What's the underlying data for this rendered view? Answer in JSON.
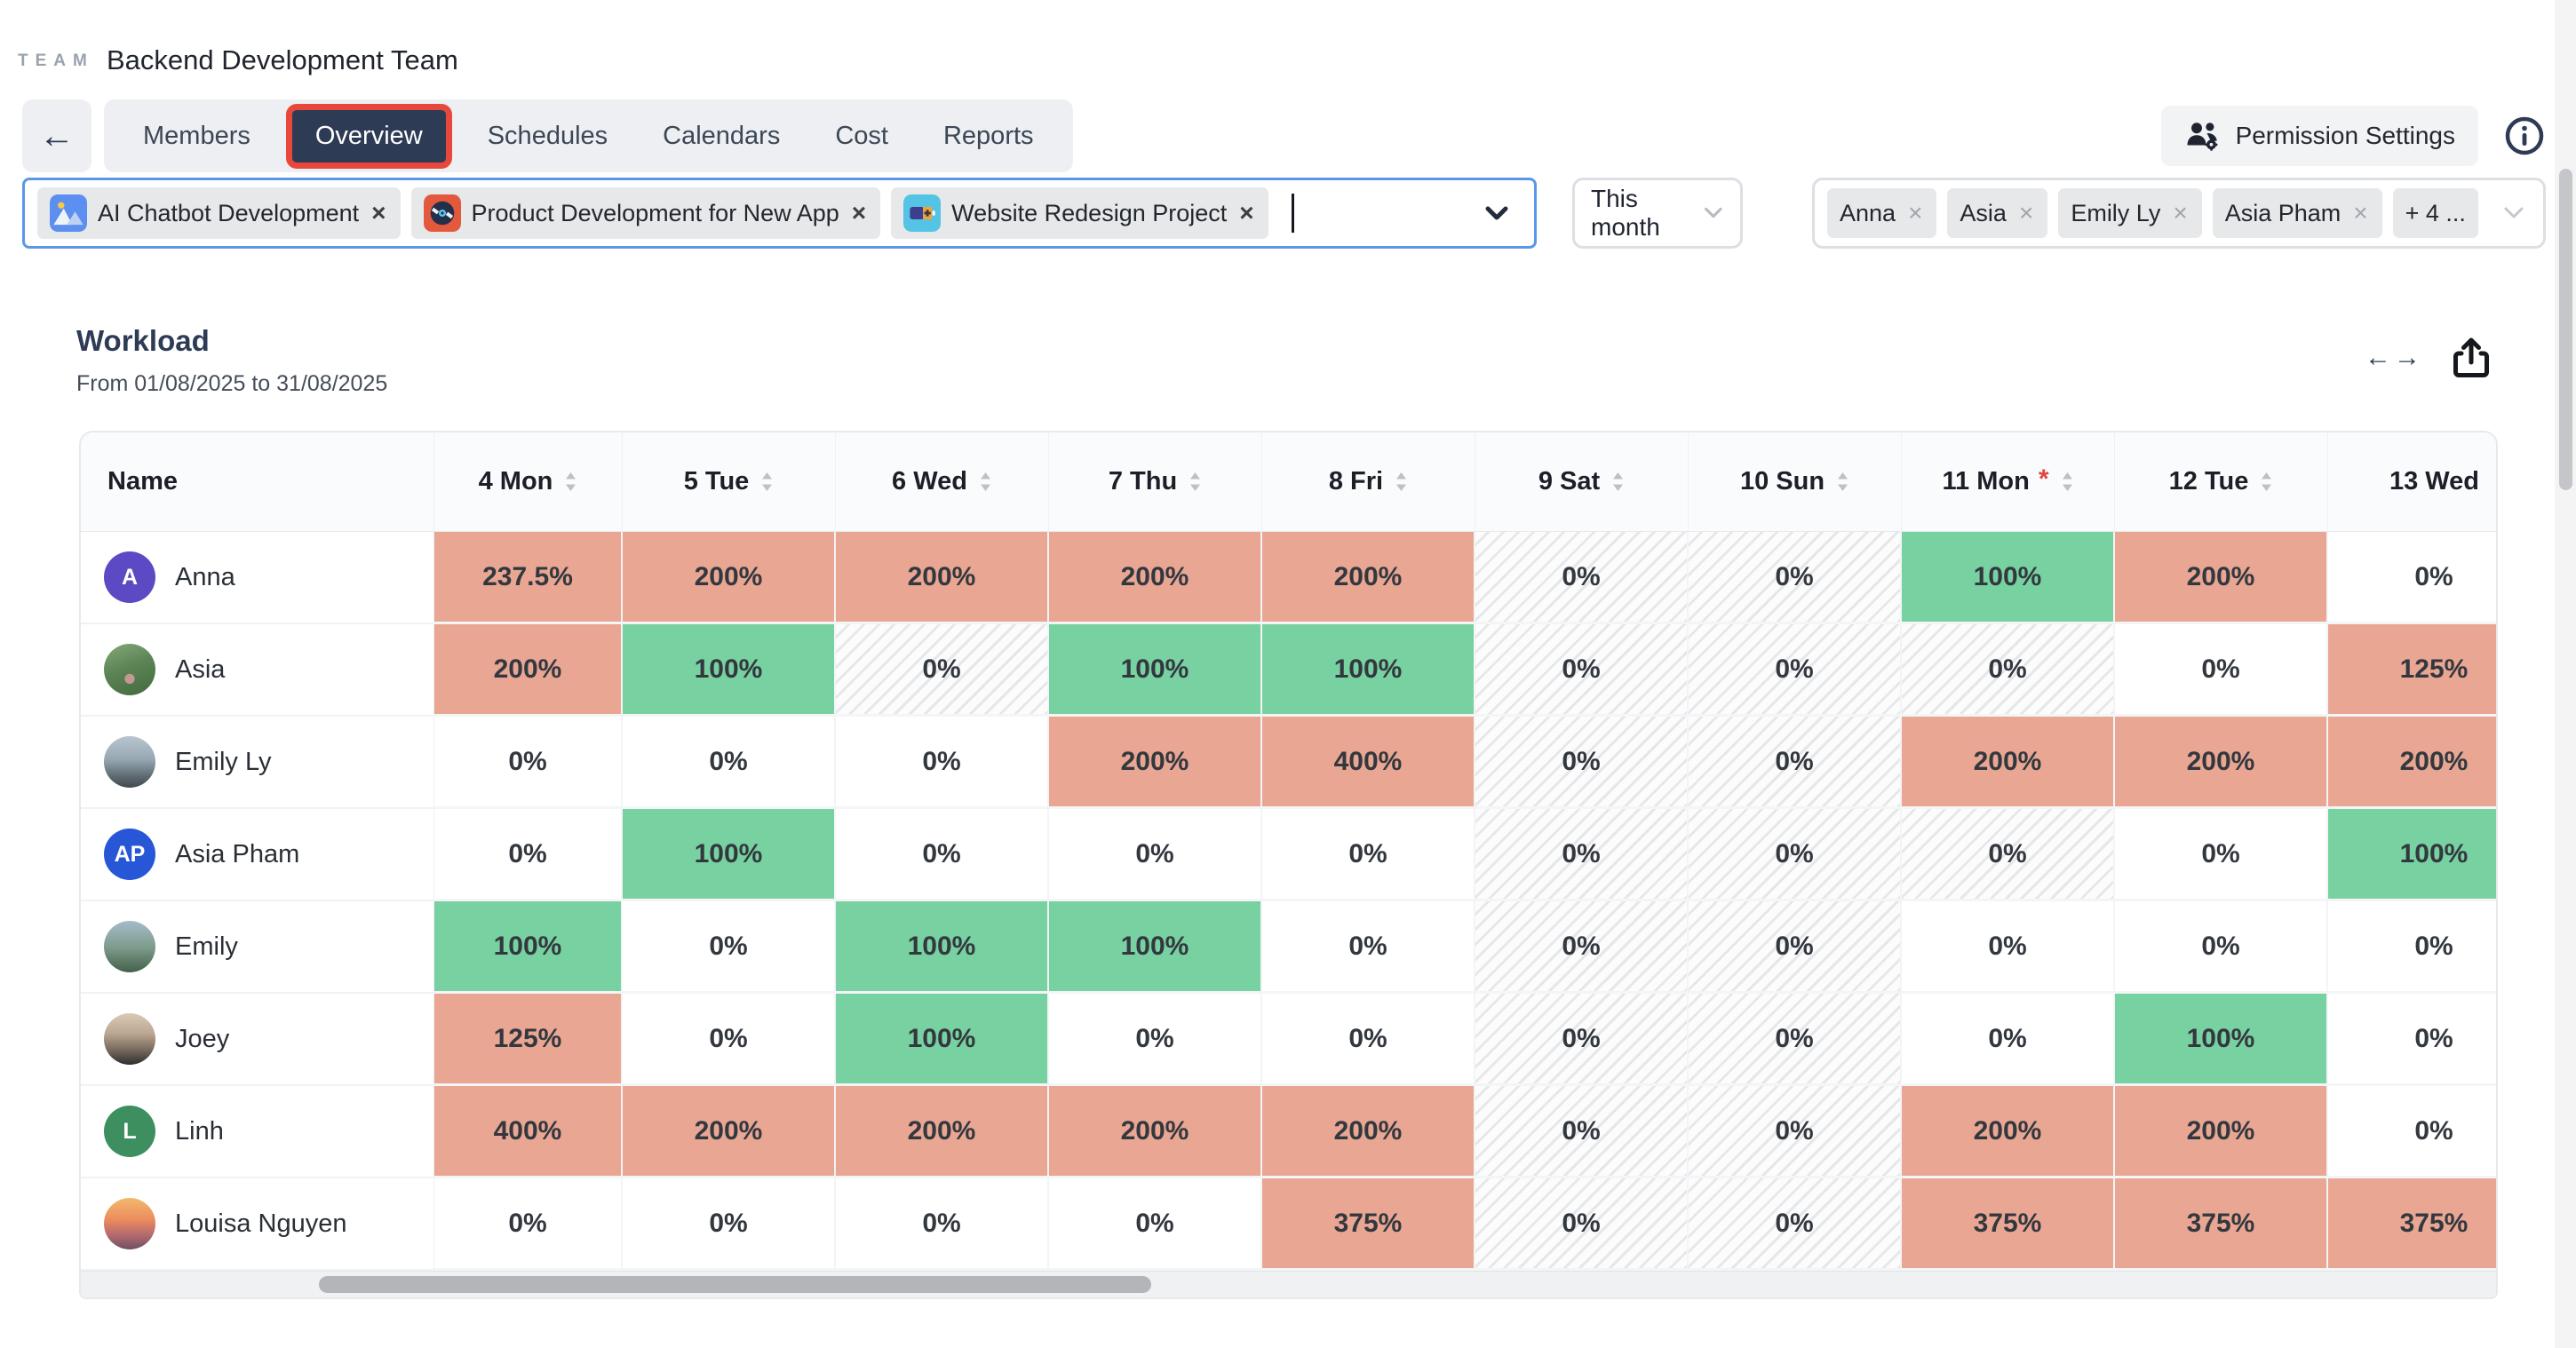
{
  "header": {
    "logo": "TEAM",
    "team_name": "Backend Development Team",
    "tabs": [
      {
        "label": "Members"
      },
      {
        "label": "Overview"
      },
      {
        "label": "Schedules"
      },
      {
        "label": "Calendars"
      },
      {
        "label": "Cost"
      },
      {
        "label": "Reports"
      }
    ],
    "active_tab": "Overview",
    "permission_settings_label": "Permission Settings"
  },
  "icons": {
    "back": "←",
    "close": "×",
    "expand_left": "←",
    "expand_right": "→",
    "info": "info-circle",
    "share": "share-export",
    "sort": "sort-arrows",
    "dropdown": "chevron-down"
  },
  "filters": {
    "projects": [
      {
        "label": "AI Chatbot Development",
        "icon": "image-mountains"
      },
      {
        "label": "Product Development for New App",
        "icon": "vinyl-disc"
      },
      {
        "label": "Website Redesign Project",
        "icon": "battery-plus"
      }
    ],
    "period": "This month",
    "members": [
      "Anna",
      "Asia",
      "Emily Ly",
      "Asia Pham"
    ],
    "members_more": "+ 4 ..."
  },
  "workload": {
    "title": "Workload",
    "date_range": "From 01/08/2025 to 31/08/2025"
  },
  "colors": {
    "accent_red": "#e8483c",
    "navy": "#2d3b55",
    "select_border_blue": "#5b97e8",
    "cell_overload": "#e9a693",
    "cell_full": "#78d1a1",
    "holiday_asterisk": "#e0443e"
  },
  "table": {
    "name_header": "Name",
    "columns": [
      {
        "label": "4 Mon",
        "sortable": true,
        "holiday": false
      },
      {
        "label": "5 Tue",
        "sortable": true,
        "holiday": false
      },
      {
        "label": "6 Wed",
        "sortable": true,
        "holiday": false
      },
      {
        "label": "7 Thu",
        "sortable": true,
        "holiday": false
      },
      {
        "label": "8 Fri",
        "sortable": true,
        "holiday": false
      },
      {
        "label": "9 Sat",
        "sortable": true,
        "holiday": false
      },
      {
        "label": "10 Sun",
        "sortable": true,
        "holiday": false
      },
      {
        "label": "11 Mon",
        "sortable": true,
        "holiday": true
      },
      {
        "label": "12 Tue",
        "sortable": true,
        "holiday": false
      },
      {
        "label": "13 Wed",
        "sortable": false,
        "holiday": false
      }
    ],
    "rows": [
      {
        "name": "Anna",
        "avatar": {
          "kind": "initials",
          "text": "A",
          "bg": "#5b4ac4"
        },
        "cells": [
          {
            "value": "237.5%",
            "status": "over"
          },
          {
            "value": "200%",
            "status": "over"
          },
          {
            "value": "200%",
            "status": "over"
          },
          {
            "value": "200%",
            "status": "over"
          },
          {
            "value": "200%",
            "status": "over"
          },
          {
            "value": "0%",
            "status": "off"
          },
          {
            "value": "0%",
            "status": "off"
          },
          {
            "value": "100%",
            "status": "ok"
          },
          {
            "value": "200%",
            "status": "over"
          },
          {
            "value": "0%",
            "status": "zero"
          }
        ]
      },
      {
        "name": "Asia",
        "avatar": {
          "kind": "photo",
          "photo": "asia-park"
        },
        "cells": [
          {
            "value": "200%",
            "status": "over"
          },
          {
            "value": "100%",
            "status": "ok"
          },
          {
            "value": "0%",
            "status": "off"
          },
          {
            "value": "100%",
            "status": "ok"
          },
          {
            "value": "100%",
            "status": "ok"
          },
          {
            "value": "0%",
            "status": "off"
          },
          {
            "value": "0%",
            "status": "off"
          },
          {
            "value": "0%",
            "status": "off"
          },
          {
            "value": "0%",
            "status": "zero"
          },
          {
            "value": "125%",
            "status": "over"
          }
        ]
      },
      {
        "name": "Emily Ly",
        "avatar": {
          "kind": "photo",
          "photo": "emily-ly-mountain"
        },
        "cells": [
          {
            "value": "0%",
            "status": "zero"
          },
          {
            "value": "0%",
            "status": "zero"
          },
          {
            "value": "0%",
            "status": "zero"
          },
          {
            "value": "200%",
            "status": "over"
          },
          {
            "value": "400%",
            "status": "over"
          },
          {
            "value": "0%",
            "status": "off"
          },
          {
            "value": "0%",
            "status": "off"
          },
          {
            "value": "200%",
            "status": "over"
          },
          {
            "value": "200%",
            "status": "over"
          },
          {
            "value": "200%",
            "status": "over"
          }
        ]
      },
      {
        "name": "Asia Pham",
        "avatar": {
          "kind": "initials",
          "text": "AP",
          "bg": "#2757d6"
        },
        "cells": [
          {
            "value": "0%",
            "status": "zero"
          },
          {
            "value": "100%",
            "status": "ok"
          },
          {
            "value": "0%",
            "status": "zero"
          },
          {
            "value": "0%",
            "status": "zero"
          },
          {
            "value": "0%",
            "status": "zero"
          },
          {
            "value": "0%",
            "status": "off"
          },
          {
            "value": "0%",
            "status": "off"
          },
          {
            "value": "0%",
            "status": "off"
          },
          {
            "value": "0%",
            "status": "zero"
          },
          {
            "value": "100%",
            "status": "ok"
          }
        ]
      },
      {
        "name": "Emily",
        "avatar": {
          "kind": "photo",
          "photo": "emily-mountain"
        },
        "cells": [
          {
            "value": "100%",
            "status": "ok"
          },
          {
            "value": "0%",
            "status": "zero"
          },
          {
            "value": "100%",
            "status": "ok"
          },
          {
            "value": "100%",
            "status": "ok"
          },
          {
            "value": "0%",
            "status": "zero"
          },
          {
            "value": "0%",
            "status": "off"
          },
          {
            "value": "0%",
            "status": "off"
          },
          {
            "value": "0%",
            "status": "zero"
          },
          {
            "value": "0%",
            "status": "zero"
          },
          {
            "value": "0%",
            "status": "zero"
          }
        ]
      },
      {
        "name": "Joey",
        "avatar": {
          "kind": "photo",
          "photo": "joey-street"
        },
        "cells": [
          {
            "value": "125%",
            "status": "over"
          },
          {
            "value": "0%",
            "status": "zero"
          },
          {
            "value": "100%",
            "status": "ok"
          },
          {
            "value": "0%",
            "status": "zero"
          },
          {
            "value": "0%",
            "status": "zero"
          },
          {
            "value": "0%",
            "status": "off"
          },
          {
            "value": "0%",
            "status": "off"
          },
          {
            "value": "0%",
            "status": "zero"
          },
          {
            "value": "100%",
            "status": "ok"
          },
          {
            "value": "0%",
            "status": "zero"
          }
        ]
      },
      {
        "name": "Linh",
        "avatar": {
          "kind": "initials",
          "text": "L",
          "bg": "#3d8f60"
        },
        "cells": [
          {
            "value": "400%",
            "status": "over"
          },
          {
            "value": "200%",
            "status": "over"
          },
          {
            "value": "200%",
            "status": "over"
          },
          {
            "value": "200%",
            "status": "over"
          },
          {
            "value": "200%",
            "status": "over"
          },
          {
            "value": "0%",
            "status": "off"
          },
          {
            "value": "0%",
            "status": "off"
          },
          {
            "value": "200%",
            "status": "over"
          },
          {
            "value": "200%",
            "status": "over"
          },
          {
            "value": "0%",
            "status": "zero"
          }
        ]
      },
      {
        "name": "Louisa Nguyen",
        "avatar": {
          "kind": "photo",
          "photo": "louisa-sunset"
        },
        "cells": [
          {
            "value": "0%",
            "status": "zero"
          },
          {
            "value": "0%",
            "status": "zero"
          },
          {
            "value": "0%",
            "status": "zero"
          },
          {
            "value": "0%",
            "status": "zero"
          },
          {
            "value": "375%",
            "status": "over"
          },
          {
            "value": "0%",
            "status": "off"
          },
          {
            "value": "0%",
            "status": "off"
          },
          {
            "value": "375%",
            "status": "over"
          },
          {
            "value": "375%",
            "status": "over"
          },
          {
            "value": "375%",
            "status": "over"
          }
        ]
      }
    ]
  }
}
